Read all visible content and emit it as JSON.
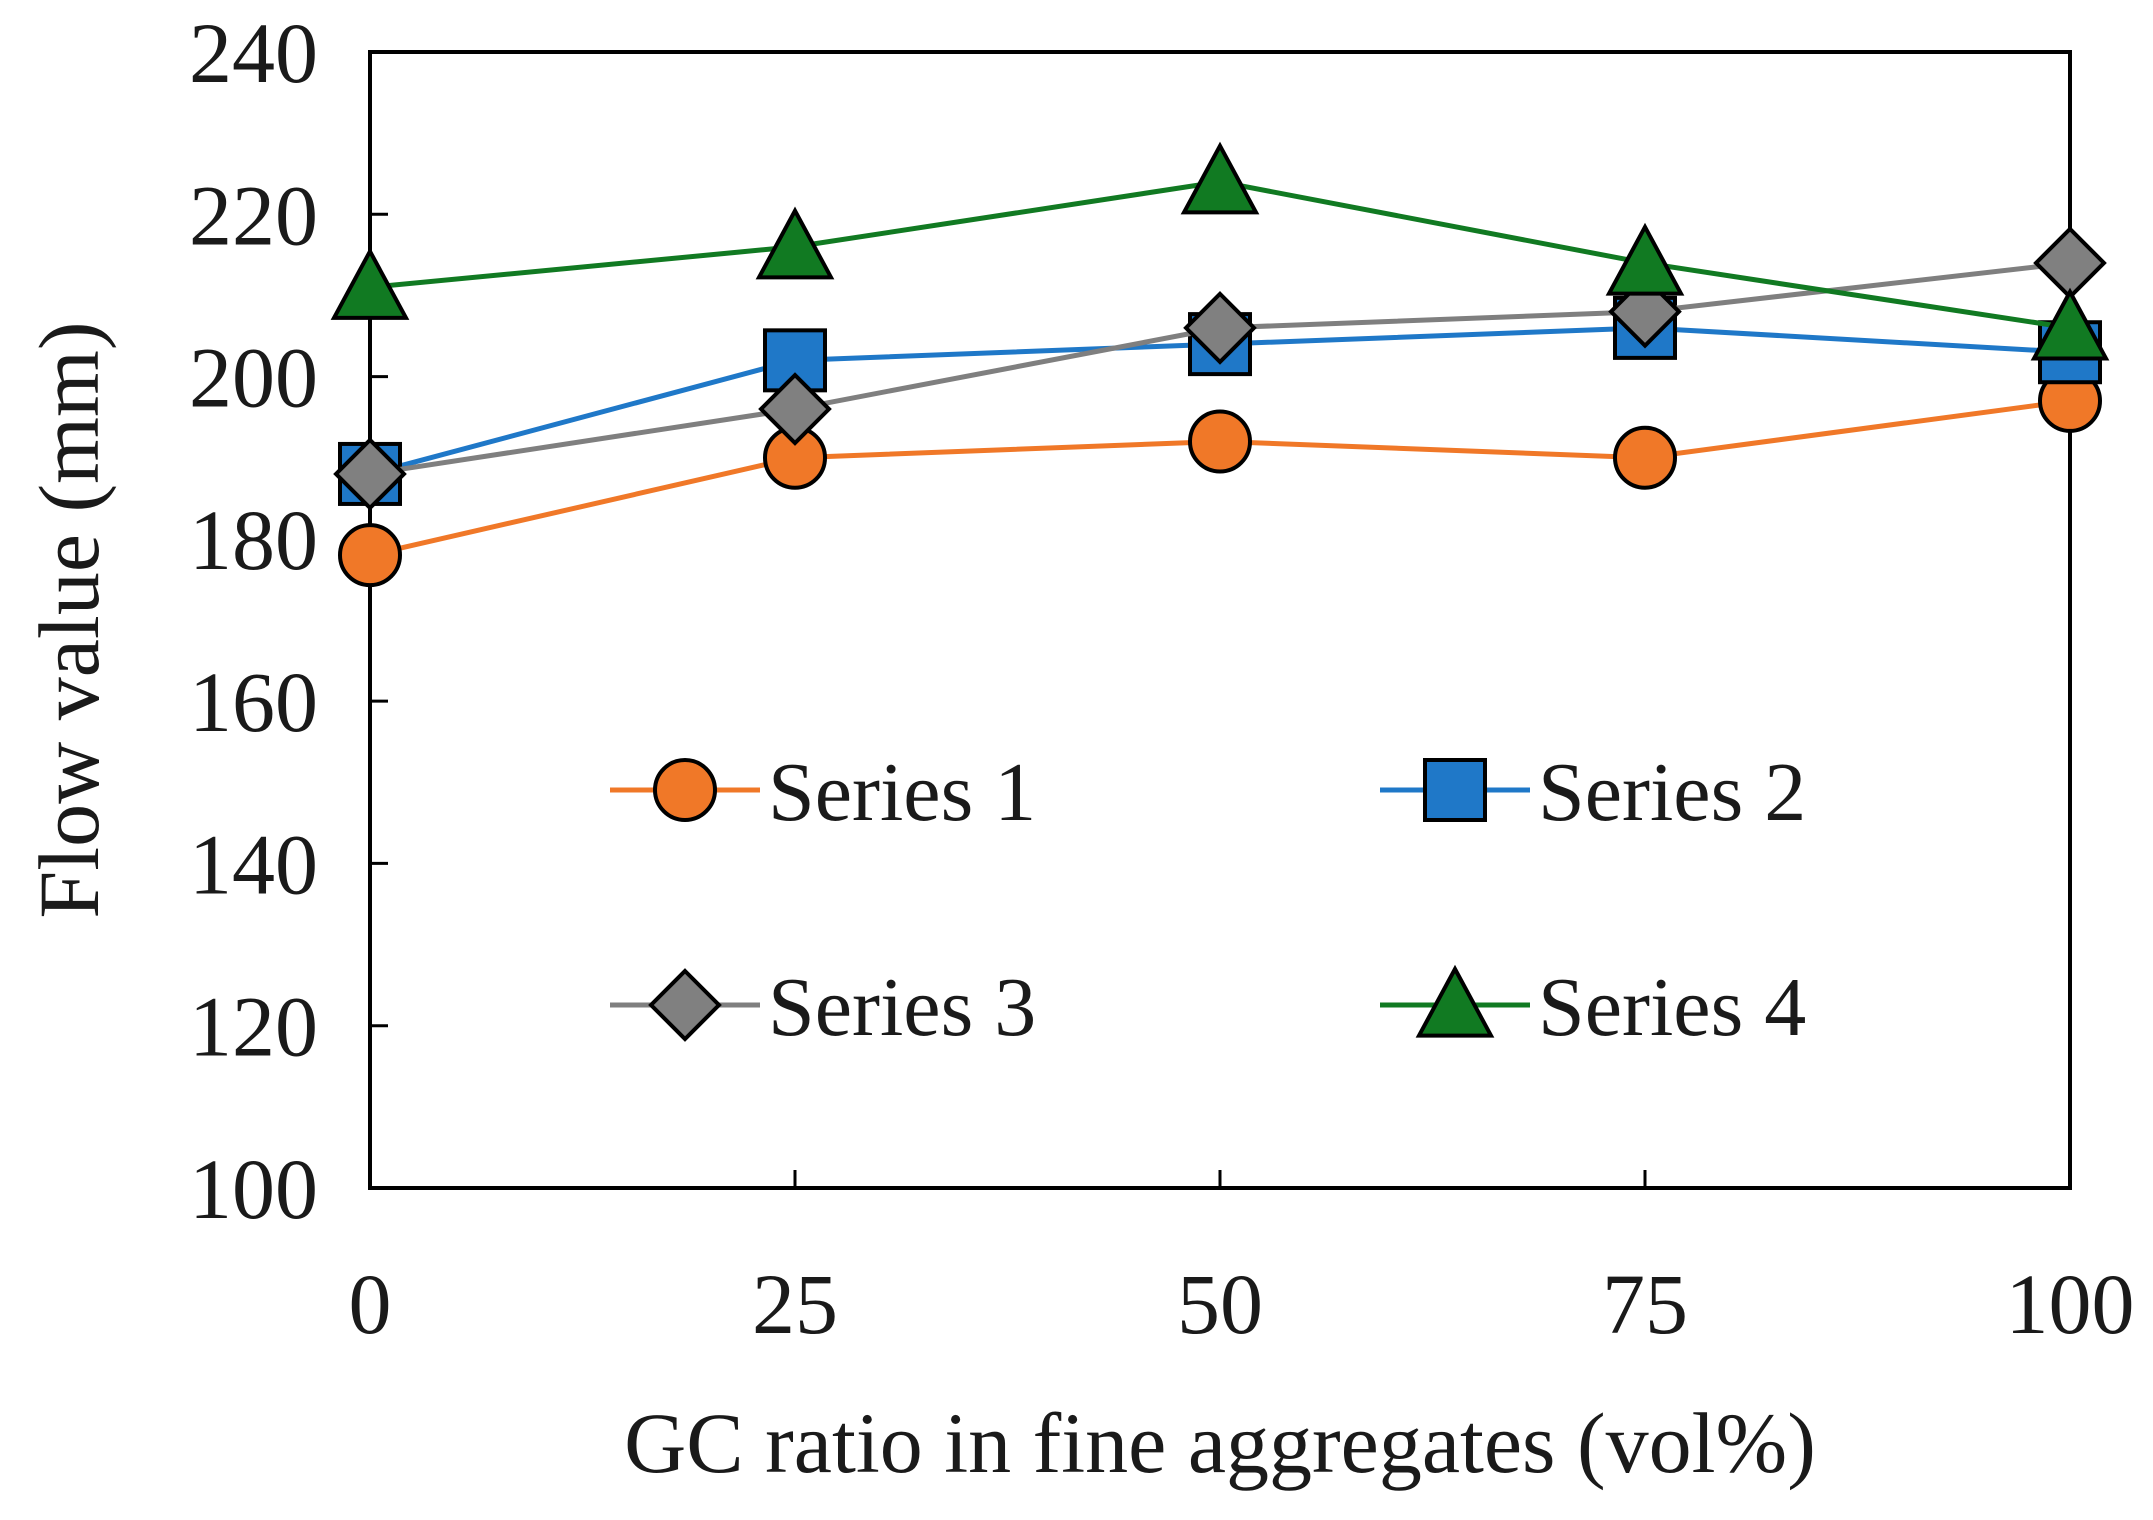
{
  "chart_data": {
    "type": "line",
    "title": "",
    "xlabel": "GC ratio in fine aggregates  (vol%)",
    "ylabel": "Flow value (mm)",
    "x": [
      0,
      25,
      50,
      75,
      100
    ],
    "x_tick_labels": [
      "0",
      "25",
      "50",
      "75",
      "100"
    ],
    "y_tick_labels": [
      "100",
      "120",
      "140",
      "160",
      "180",
      "200",
      "220",
      "240"
    ],
    "y_ticks": [
      100,
      120,
      140,
      160,
      180,
      200,
      220,
      240
    ],
    "xlim": [
      0,
      100
    ],
    "ylim": [
      100,
      240
    ],
    "grid": false,
    "legend_position": "center",
    "series": [
      {
        "name": "Series 1",
        "marker": "circle",
        "color": "#f07828",
        "line_color": "#f07828",
        "values": [
          178,
          190,
          192,
          190,
          197
        ]
      },
      {
        "name": "Series 2",
        "marker": "square",
        "color": "#1f78c8",
        "line_color": "#1f78c8",
        "values": [
          188,
          202,
          204,
          206,
          203
        ]
      },
      {
        "name": "Series 3",
        "marker": "diamond",
        "color": "#808080",
        "line_color": "#7f7f7f",
        "values": [
          188,
          196,
          206,
          208,
          214
        ]
      },
      {
        "name": "Series 4",
        "marker": "triangle",
        "color": "#117a22",
        "line_color": "#117a22",
        "values": [
          211,
          216,
          224,
          214,
          206
        ]
      }
    ]
  }
}
